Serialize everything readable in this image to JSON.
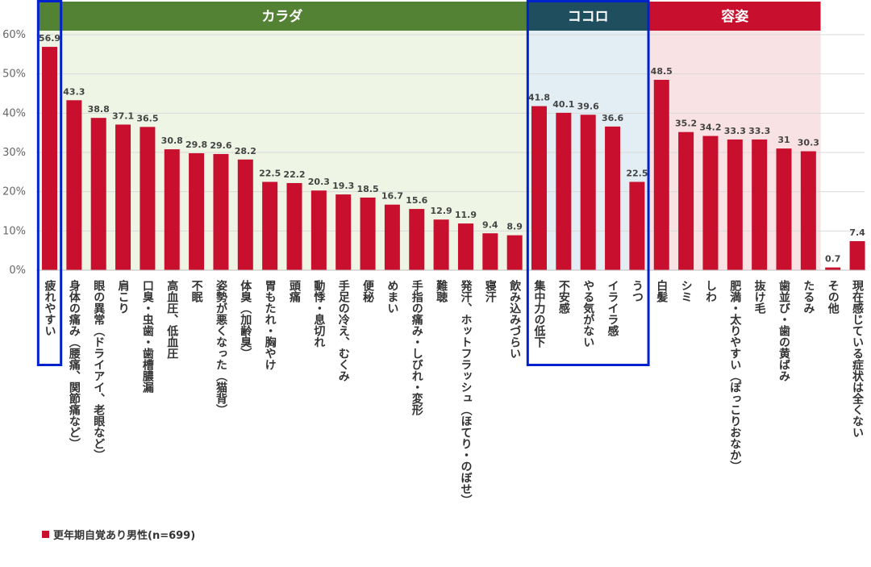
{
  "chart_data": {
    "type": "bar",
    "categories": [
      "疲れやすい",
      "身体の痛み（腰痛、関節痛など）",
      "眼の異常（ドライアイ、老眼など）",
      "肩こり",
      "口臭・虫歯・歯槽膿漏",
      "高血圧、低血圧",
      "不眠",
      "姿勢が悪くなった（猫背）",
      "体臭（加齢臭）",
      "胃もたれ・胸やけ",
      "頭痛",
      "動悸・息切れ",
      "手足の冷え、むくみ",
      "便秘",
      "めまい",
      "手指の痛み・しびれ・変形",
      "難聴",
      "発汗、ホットフラッシュ（ほてり・のぼせ）",
      "寝汗",
      "飲み込みづらい",
      "集中力の低下",
      "不安感",
      "やる気がない",
      "イライラ感",
      "うつ",
      "白髪",
      "シミ",
      "しわ",
      "肥満・太りやすい（ぽっこりおなか）",
      "抜け毛",
      "歯並び・歯の黄ばみ",
      "たるみ",
      "その他",
      "現在感じている症状は全くない"
    ],
    "series": [
      {
        "name": "更年期自覚あり男性(n=699)",
        "values": [
          56.9,
          43.3,
          38.8,
          37.1,
          36.5,
          30.8,
          29.8,
          29.6,
          28.2,
          22.5,
          22.2,
          20.3,
          19.3,
          18.5,
          16.7,
          15.6,
          12.9,
          11.9,
          9.4,
          8.9,
          41.8,
          40.1,
          39.6,
          36.6,
          22.5,
          48.5,
          35.2,
          34.2,
          33.3,
          33.3,
          31,
          30.3,
          0.7,
          7.4
        ]
      }
    ],
    "data_labels": [
      "56.9",
      "43.3",
      "38.8",
      "37.1",
      "36.5",
      "30.8",
      "29.8",
      "29.6",
      "28.2",
      "22.5",
      "22.2",
      "20.3",
      "19.3",
      "18.5",
      "16.7",
      "15.6",
      "12.9",
      "11.9",
      "9.4",
      "8.9",
      "41.8",
      "40.1",
      "39.6",
      "36.6",
      "22.5",
      "48.5",
      "35.2",
      "34.2",
      "33.3",
      "33.3",
      "31",
      "30.3",
      "0.7",
      "7.4"
    ],
    "groups": [
      {
        "name": "カラダ",
        "start": 0,
        "end": 19,
        "header_color": "#548235",
        "bg_color": "#eef5e4"
      },
      {
        "name": "ココロ",
        "start": 20,
        "end": 24,
        "header_color": "#1f4e5f",
        "bg_color": "#e3eef4"
      },
      {
        "name": "容姿",
        "start": 25,
        "end": 31,
        "header_color": "#c8102e",
        "bg_color": "#f9e2e4"
      }
    ],
    "highlighted": [
      0,
      20,
      21,
      22,
      23,
      24
    ],
    "y_ticks": [
      "0%",
      "10%",
      "20%",
      "30%",
      "40%",
      "50%",
      "60%"
    ],
    "ylim": [
      0,
      60
    ],
    "grid": true,
    "bar_color": "#c8102e",
    "highlight_color": "#0022cc",
    "legend_position": "bottom-left"
  },
  "legend": {
    "label": "更年期自覚あり男性(n=699)"
  }
}
